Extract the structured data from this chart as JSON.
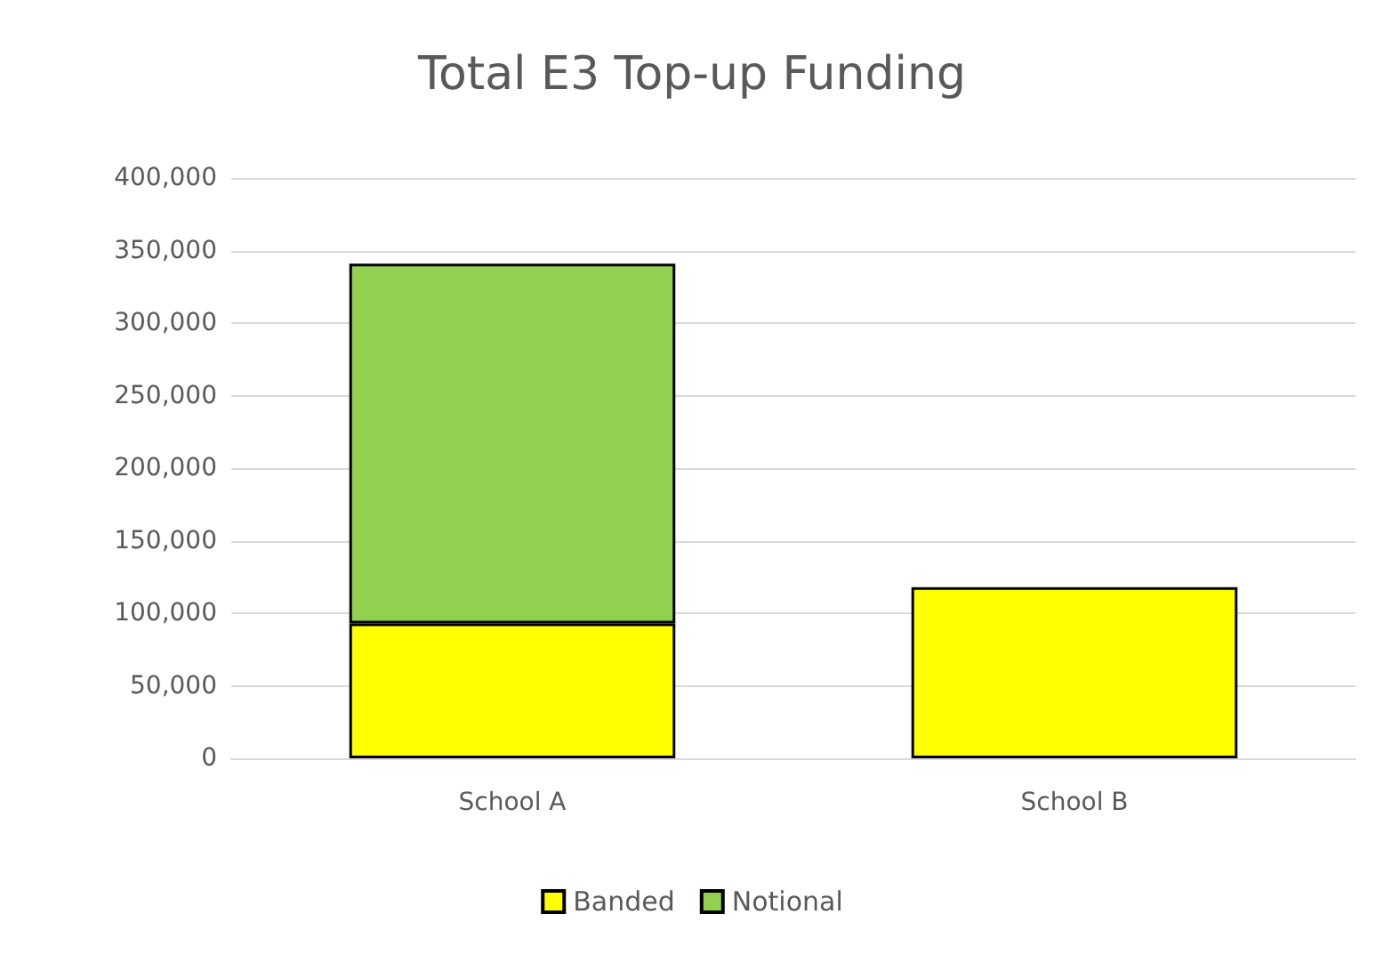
{
  "chart_data": {
    "type": "bar",
    "title": "Total E3 Top-up Funding",
    "categories": [
      "School A",
      "School B"
    ],
    "stacked": true,
    "series": [
      {
        "name": "Banded",
        "color": "#ffff00",
        "values": [
          93000,
          118000
        ]
      },
      {
        "name": "Notional",
        "color": "#92d050",
        "values": [
          248000,
          null
        ]
      }
    ],
    "ylim": [
      0,
      400000
    ],
    "yticks": [
      0,
      {
        "value": 50000,
        "label": "50,000"
      },
      {
        "value": 100000,
        "label": "100,000"
      },
      {
        "value": 150000,
        "label": "150,000"
      },
      {
        "value": 200000,
        "label": "200,000"
      },
      {
        "value": 250000,
        "label": "250,000"
      },
      {
        "value": 300000,
        "label": "300,000"
      },
      {
        "value": 350000,
        "label": "350,000"
      },
      {
        "value": 400000,
        "label": "400,000"
      }
    ],
    "grid": "y",
    "legend": "bottom"
  }
}
